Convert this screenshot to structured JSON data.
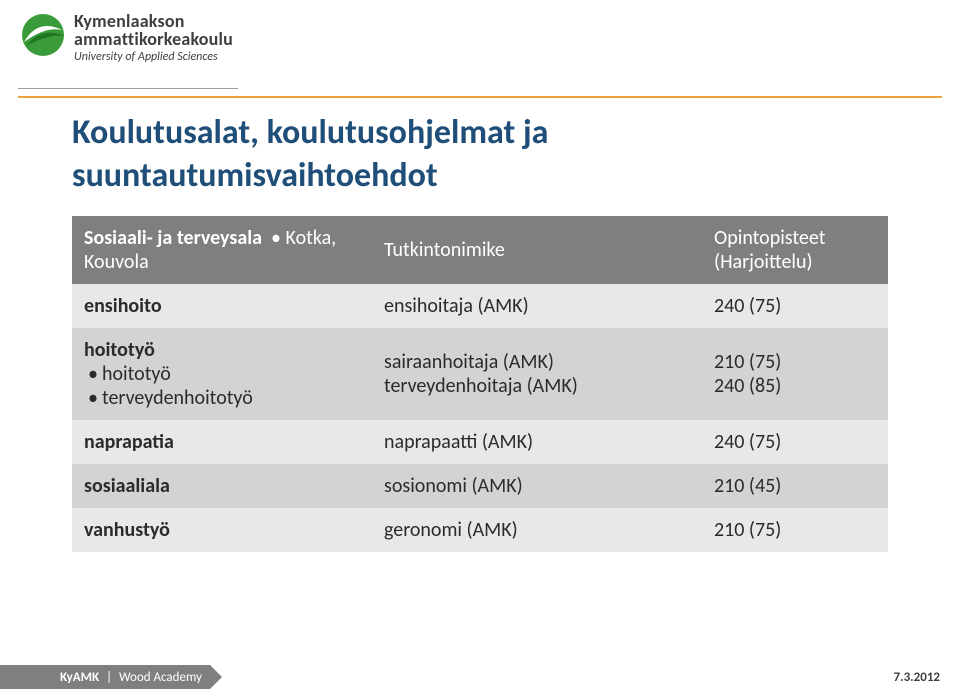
{
  "logo": {
    "line1": "Kymenlaakson",
    "line2": "ammattikorkeakoulu",
    "sub": "University of Applied Sciences",
    "mark_colors": {
      "green": "#3a9b3a",
      "dark_green": "#1e6f1e",
      "white": "#ffffff"
    }
  },
  "colors": {
    "title": "#1f4e79",
    "accent_line": "#e8a33d",
    "thin_line": "#9aa0a6",
    "thead_bg": "#7f7f7f",
    "thead_fg": "#ffffff",
    "row_even_bg": "#e8e8e8",
    "row_odd_bg": "#d3d3d3",
    "text": "#2b2b2b",
    "footer_bg": "#7f7f7f",
    "footer_fg": "#ffffff",
    "footer_right_fg": "#404040",
    "page_bg": "#ffffff"
  },
  "title": {
    "line1": "Koulutusalat, koulutusohjelmat ja",
    "line2": "suuntautumisvaihtoehdot"
  },
  "table": {
    "header": {
      "col_a_label": "Sosiaali- ja terveysala",
      "col_a_bullet": "Kotka, Kouvola",
      "col_b": "Tutkintonimike",
      "col_c_line1": "Opintopisteet",
      "col_c_line2": "(Harjoittelu)"
    },
    "rows": [
      {
        "a": "ensihoito",
        "a_bullets": [],
        "b": [
          "ensihoitaja (AMK)"
        ],
        "c": [
          "240 (75)"
        ]
      },
      {
        "a": "hoitotyö",
        "a_bullets": [
          "hoitotyö",
          "terveydenhoitotyö"
        ],
        "b": [
          "sairaanhoitaja (AMK)",
          "terveydenhoitaja (AMK)"
        ],
        "c": [
          "210 (75)",
          "240 (85)"
        ]
      },
      {
        "a": "naprapatia",
        "a_bullets": [],
        "b": [
          "naprapaatti (AMK)"
        ],
        "c": [
          "240 (75)"
        ]
      },
      {
        "a": "sosiaaliala",
        "a_bullets": [],
        "b": [
          "sosionomi (AMK)"
        ],
        "c": [
          "210 (45)"
        ]
      },
      {
        "a": "vanhustyö",
        "a_bullets": [],
        "b": [
          "geronomi (AMK)"
        ],
        "c": [
          "210 (75)"
        ]
      }
    ]
  },
  "footer": {
    "left_org": "KyAMK",
    "left_sep": "|",
    "left_unit": "Wood Academy",
    "right": "7.3.2012"
  },
  "typography": {
    "title_fontsize": 34,
    "table_fontsize": 20,
    "footer_fontsize": 13,
    "logo_main_fontsize": 18,
    "logo_sub_fontsize": 12
  }
}
